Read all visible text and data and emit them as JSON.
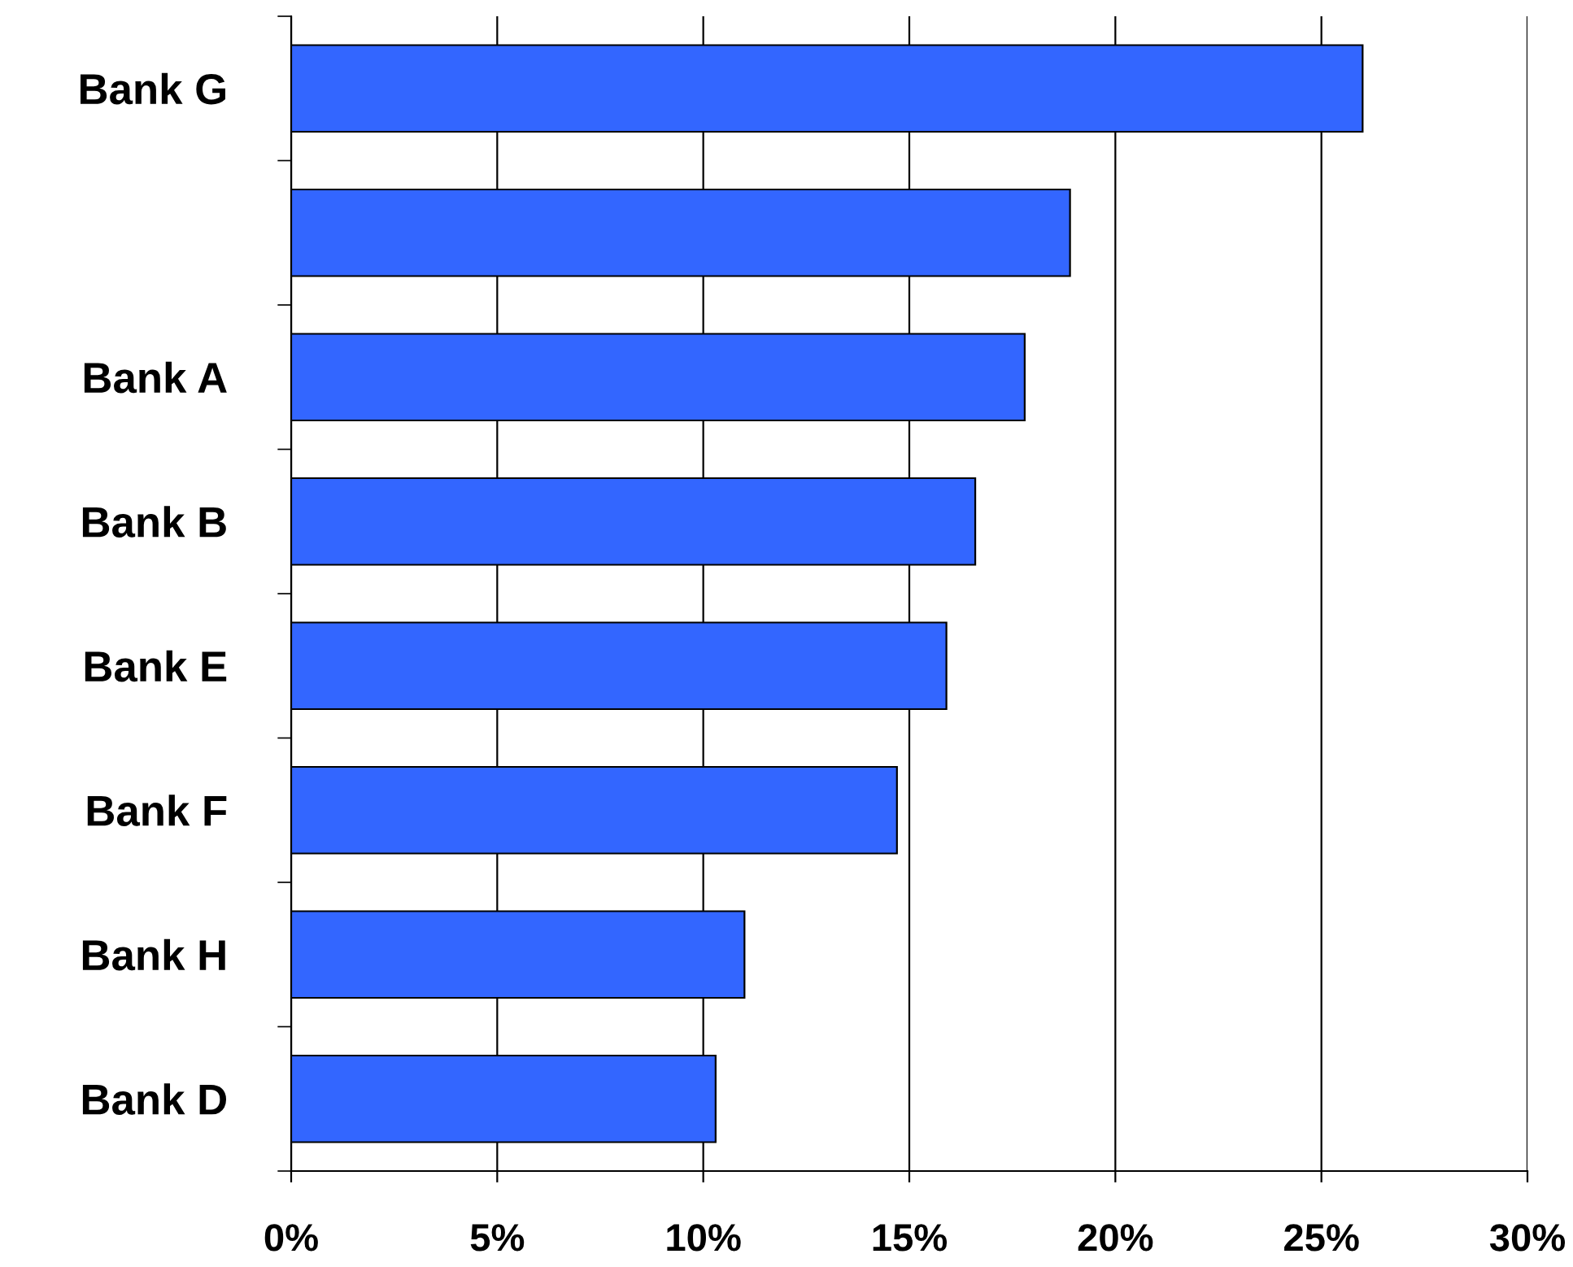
{
  "chart_data": {
    "type": "bar",
    "orientation": "horizontal",
    "categories": [
      "Bank G",
      null,
      "Bank A",
      "Bank B",
      "Bank E",
      "Bank F",
      "Bank H",
      "Bank D"
    ],
    "values": [
      26.0,
      18.9,
      17.8,
      16.6,
      15.9,
      14.7,
      11.0,
      10.3
    ],
    "color": "#3366ff",
    "xlim": [
      0,
      30
    ],
    "xticks": [
      {
        "value": 0,
        "label": "0%"
      },
      {
        "value": 5,
        "label": "5%"
      },
      {
        "value": 10,
        "label": "10%"
      },
      {
        "value": 15,
        "label": "15%"
      },
      {
        "value": 20,
        "label": "20%"
      },
      {
        "value": 25,
        "label": "25%"
      },
      {
        "value": 30,
        "label": "30%"
      }
    ],
    "grid": "x",
    "legend": false
  }
}
